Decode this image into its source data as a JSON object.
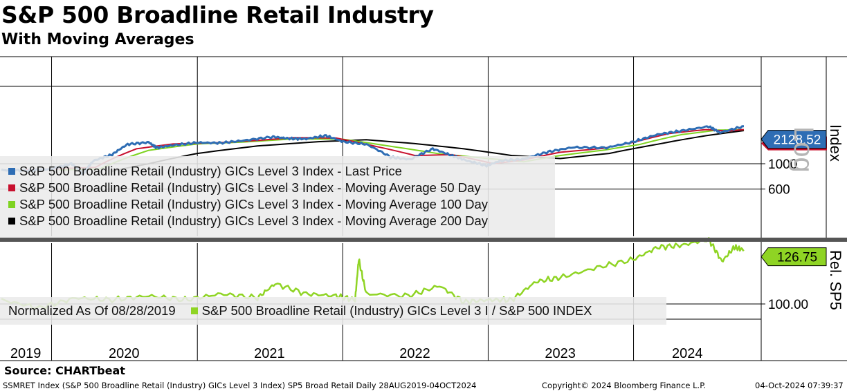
{
  "header": {
    "title": "S&P 500 Broadline Retail Industry",
    "subtitle": "With Moving Averages"
  },
  "colors": {
    "last_price": "#2e6db4",
    "ma50": "#c8102e",
    "ma100": "#7ed321",
    "ma200": "#000000",
    "rel": "#8fd424",
    "axis_tag_price": "#2e6db4",
    "axis_tag_rel": "#8fd424"
  },
  "chart_data": [
    {
      "type": "line",
      "scale": "log",
      "axis_label": "Index",
      "scale_label": "Log",
      "yticks": [
        "1000",
        "600"
      ],
      "ytick_values": [
        1000,
        600
      ],
      "current_value_tag": "2128.52",
      "x_labels": [
        "2019",
        "2020",
        "2021",
        "2022",
        "2023",
        "2024"
      ],
      "x_dates": [
        "2019-08-28",
        "2024-10-04"
      ],
      "series": [
        {
          "name": "S&P 500 Broadline Retail (Industry) GICs Level 3 Index - Last Price",
          "x": [
            "2019-08-28",
            "2019-11-01",
            "2020-01-01",
            "2020-02-20",
            "2020-03-20",
            "2020-04-15",
            "2020-06-01",
            "2020-07-10",
            "2020-09-01",
            "2020-09-20",
            "2020-11-01",
            "2021-01-01",
            "2021-03-01",
            "2021-05-01",
            "2021-07-10",
            "2021-08-20",
            "2021-10-01",
            "2021-11-20",
            "2022-01-01",
            "2022-03-01",
            "2022-05-01",
            "2022-06-20",
            "2022-08-15",
            "2022-10-01",
            "2022-11-10",
            "2022-12-28",
            "2023-02-01",
            "2023-04-01",
            "2023-06-01",
            "2023-07-31",
            "2023-10-25",
            "2023-12-31",
            "2024-03-01",
            "2024-04-30",
            "2024-07-08",
            "2024-08-05",
            "2024-10-04"
          ],
          "values": [
            880,
            870,
            900,
            1000,
            810,
            1060,
            1200,
            1480,
            1540,
            1380,
            1450,
            1530,
            1520,
            1600,
            1720,
            1660,
            1650,
            1760,
            1560,
            1480,
            1140,
            1090,
            1350,
            1180,
            1060,
            960,
            1060,
            1100,
            1270,
            1390,
            1380,
            1550,
            1800,
            1940,
            2120,
            1870,
            2128.52
          ]
        },
        {
          "name": "S&P 500 Broadline Retail (Industry) GICs Level 3 Index - Moving Average 50 Day",
          "x": [
            "2019-10-20",
            "2020-01-01",
            "2020-04-20",
            "2020-08-01",
            "2020-11-01",
            "2021-03-01",
            "2021-06-01",
            "2021-09-01",
            "2021-12-15",
            "2022-04-01",
            "2022-07-01",
            "2022-10-01",
            "2023-01-15",
            "2023-04-01",
            "2023-07-01",
            "2023-10-15",
            "2024-01-01",
            "2024-04-01",
            "2024-07-01",
            "2024-08-25",
            "2024-10-04"
          ],
          "values": [
            880,
            900,
            930,
            1350,
            1490,
            1530,
            1600,
            1690,
            1680,
            1400,
            1180,
            1200,
            1000,
            1080,
            1260,
            1360,
            1540,
            1840,
            1990,
            1930,
            1990
          ]
        },
        {
          "name": "S&P 500 Broadline Retail (Industry) GICs Level 3 Index - Moving Average 100 Day",
          "x": [
            "2020-01-20",
            "2020-05-01",
            "2020-09-01",
            "2021-01-01",
            "2021-05-01",
            "2021-09-01",
            "2022-01-01",
            "2022-05-01",
            "2022-09-01",
            "2023-01-01",
            "2023-04-01",
            "2023-07-01",
            "2023-10-15",
            "2024-01-15",
            "2024-05-01",
            "2024-08-01",
            "2024-10-04"
          ],
          "values": [
            880,
            900,
            1310,
            1490,
            1550,
            1650,
            1640,
            1420,
            1220,
            1110,
            1040,
            1180,
            1310,
            1470,
            1800,
            1970,
            1985
          ]
        },
        {
          "name": "S&P 500 Broadline Retail (Industry) GICs Level 3 Index - Moving Average 200 Day",
          "x": [
            "2020-06-01",
            "2020-09-01",
            "2021-01-01",
            "2021-06-01",
            "2021-11-01",
            "2022-03-01",
            "2022-07-01",
            "2022-11-01",
            "2023-03-01",
            "2023-07-01",
            "2023-11-01",
            "2024-03-01",
            "2024-07-01",
            "2024-10-04"
          ],
          "values": [
            860,
            1000,
            1230,
            1430,
            1560,
            1620,
            1500,
            1350,
            1180,
            1110,
            1230,
            1480,
            1760,
            1950
          ]
        }
      ]
    },
    {
      "type": "line",
      "axis_label": "Rel. SP5",
      "yticks": [
        "100.00"
      ],
      "ytick_values": [
        100
      ],
      "current_value_tag": "126.75",
      "note": "Normalized As Of 08/28/2019",
      "series": [
        {
          "name": "S&P 500 Broadline Retail (Industry) GICs Level 3 I / S&P 500 INDEX",
          "x": [
            "2019-08-28",
            "2019-12-01",
            "2020-03-01",
            "2020-06-01",
            "2020-09-01",
            "2020-12-01",
            "2021-03-01",
            "2021-06-01",
            "2021-07-15",
            "2021-10-01",
            "2021-12-15",
            "2022-02-01",
            "2022-02-10",
            "2022-03-01",
            "2022-06-15",
            "2022-09-01",
            "2022-11-01",
            "2023-01-01",
            "2023-03-01",
            "2023-05-01",
            "2023-07-01",
            "2023-10-01",
            "2024-01-01",
            "2024-03-01",
            "2024-05-01",
            "2024-07-08",
            "2024-08-10",
            "2024-09-10",
            "2024-10-04"
          ],
          "values": [
            102,
            98,
            103,
            102,
            104,
            102,
            105,
            103,
            110,
            105,
            104,
            102,
            122,
            105,
            104,
            109,
            101,
            102,
            102,
            111,
            113,
            118,
            122,
            128,
            129,
            132,
            121,
            128,
            126.75
          ]
        }
      ]
    }
  ],
  "legend_top": [
    {
      "label": "S&P 500 Broadline Retail (Industry) GICs Level 3 Index - Last Price",
      "color": "#2e6db4"
    },
    {
      "label": "S&P 500 Broadline Retail (Industry) GICs Level 3 Index - Moving Average 50 Day",
      "color": "#c8102e"
    },
    {
      "label": "S&P 500 Broadline Retail (Industry) GICs Level 3 Index - Moving Average 100 Day",
      "color": "#7ed321"
    },
    {
      "label": "S&P 500 Broadline Retail (Industry) GICs Level 3 Index - Moving Average 200 Day",
      "color": "#000000"
    }
  ],
  "legend_bottom": {
    "note": "Normalized As Of 08/28/2019",
    "label": "S&P 500 Broadline Retail (Industry) GICs Level 3 I / S&P 500 INDEX",
    "color": "#8fd424"
  },
  "footer": {
    "source": "Source: CHARTbeat",
    "left": "SSMRET Index (S&P 500 Broadline Retail (Industry) GICs Level 3 Index) SP5 Broad Retail  Daily 28AUG2019-04OCT2024",
    "center": "Copyright© 2024 Bloomberg Finance L.P.",
    "right": "04-Oct-2024 07:39:37"
  }
}
